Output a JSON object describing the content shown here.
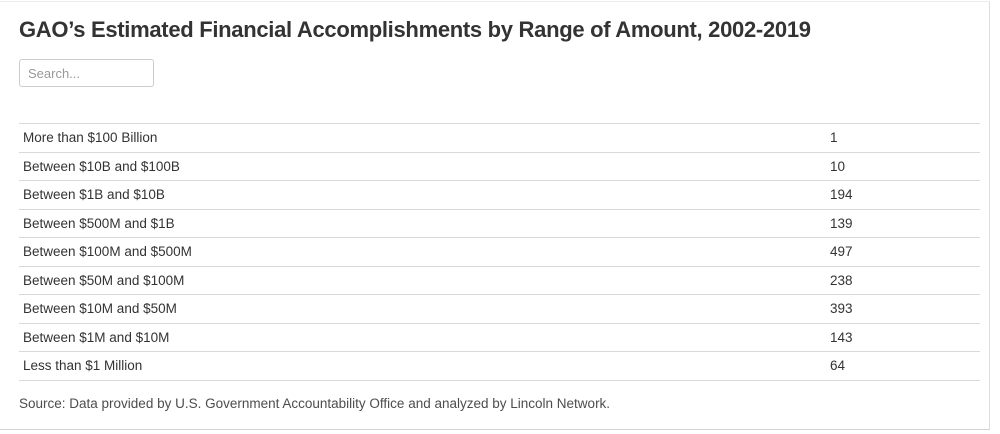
{
  "title": "GAO’s Estimated Financial Accomplishments by Range of Amount, 2002-2019",
  "search": {
    "placeholder": "Search...",
    "value": ""
  },
  "source_note": "Source: Data provided by U.S. Government Accountability Office and analyzed by Lincoln Network.",
  "colors": {
    "background": "#ffffff",
    "title_text": "#333333",
    "row_text": "#333333",
    "divider": "#d9d9d9",
    "source_text": "#4d4d4d",
    "card_border": "#dddddd",
    "search_border": "#cccccc",
    "placeholder_text": "#999999"
  },
  "chart_data": {
    "type": "table",
    "title": "GAO’s Estimated Financial Accomplishments by Range of Amount, 2002-2019",
    "rows": [
      {
        "label": "More than $100 Billion",
        "value": "1"
      },
      {
        "label": "Between $10B and $100B",
        "value": "10"
      },
      {
        "label": "Between $1B and $10B",
        "value": "194"
      },
      {
        "label": "Between $500M and $1B",
        "value": "139"
      },
      {
        "label": "Between $100M and $500M",
        "value": "497"
      },
      {
        "label": "Between $50M and $100M",
        "value": "238"
      },
      {
        "label": "Between $10M and $50M",
        "value": "393"
      },
      {
        "label": "Between $1M and $10M",
        "value": "143"
      },
      {
        "label": "Less than $1 Million",
        "value": "64"
      }
    ],
    "source": "Source: Data provided by U.S. Government Accountability Office and analyzed by Lincoln Network.",
    "layout": {
      "grid": "horizontal row dividers only",
      "legend": "none",
      "value_column_alignment": "left"
    }
  }
}
